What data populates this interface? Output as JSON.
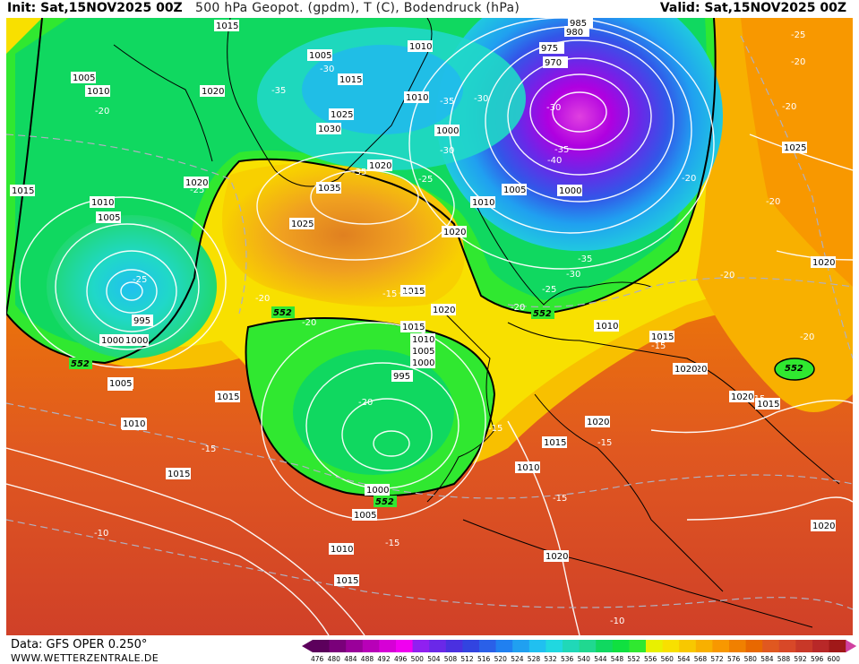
{
  "header": {
    "init": "Init: Sat,15NOV2025 00Z",
    "title": "500 hPa Geopot. (gpdm), T (C), Bodendruck (hPa)",
    "valid": "Valid: Sat,15NOV2025 00Z"
  },
  "footer": {
    "data_source": "Data: GFS OPER 0.250°",
    "website": "WWW.WETTERZENTRALE.DE"
  },
  "legend": {
    "ticks": [
      "476",
      "480",
      "484",
      "488",
      "492",
      "496",
      "500",
      "504",
      "508",
      "512",
      "516",
      "520",
      "524",
      "528",
      "532",
      "536",
      "540",
      "544",
      "548",
      "552",
      "556",
      "560",
      "564",
      "568",
      "572",
      "576",
      "580",
      "584",
      "588",
      "592",
      "596",
      "600"
    ],
    "colors": [
      "#5c005c",
      "#7a007a",
      "#9a009a",
      "#b800b8",
      "#d600d6",
      "#f000f0",
      "#9020f0",
      "#6a28e8",
      "#4a30e0",
      "#3244e0",
      "#2a60e8",
      "#2080f0",
      "#20a0f0",
      "#20c0f0",
      "#20d8e0",
      "#20d8b8",
      "#20d890",
      "#10d860",
      "#10e040",
      "#30e830",
      "#e8f000",
      "#f8e000",
      "#f8c800",
      "#f8b000",
      "#f89800",
      "#f08000",
      "#e86800",
      "#e05820",
      "#d84828",
      "#c83828",
      "#b82828",
      "#a01818"
    ],
    "arrow_left_color": "#5c005c",
    "arrow_right_color": "#d040a0"
  },
  "isobar_labels": [
    "1015",
    "1005",
    "1010",
    "1020",
    "1010",
    "1005",
    "1035",
    "1030",
    "1025",
    "1020",
    "1025",
    "1015",
    "1010",
    "1020",
    "1015",
    "1020",
    "1010",
    "1005",
    "1000",
    "1010",
    "1000",
    "1005",
    "985",
    "980",
    "975",
    "970",
    "1000",
    "1005",
    "1015",
    "1010",
    "1005",
    "1000",
    "995",
    "1000",
    "1005",
    "1010",
    "1015",
    "1015",
    "1010",
    "1005",
    "1000",
    "995",
    "1015",
    "1020",
    "1020",
    "1010",
    "1015",
    "1020",
    "1020",
    "1015",
    "1020",
    "1010",
    "1020",
    "1015",
    "1025",
    "1020",
    "1015",
    "1010",
    "1005",
    "1020"
  ],
  "temperature_labels": [
    "-25",
    "-30",
    "-35",
    "-35",
    "-30",
    "-30",
    "-25",
    "-35",
    "-20",
    "-35",
    "-30",
    "-40",
    "-35",
    "-30",
    "-25",
    "-25",
    "-20",
    "-20",
    "-20",
    "-20",
    "-20",
    "-15",
    "-20",
    "-15",
    "-20",
    "-15",
    "-15",
    "-15",
    "-15",
    "-20",
    "-15",
    "-15",
    "-15",
    "-10",
    "-10",
    "-20",
    "-20",
    "-25"
  ],
  "contour_552_label": "552"
}
